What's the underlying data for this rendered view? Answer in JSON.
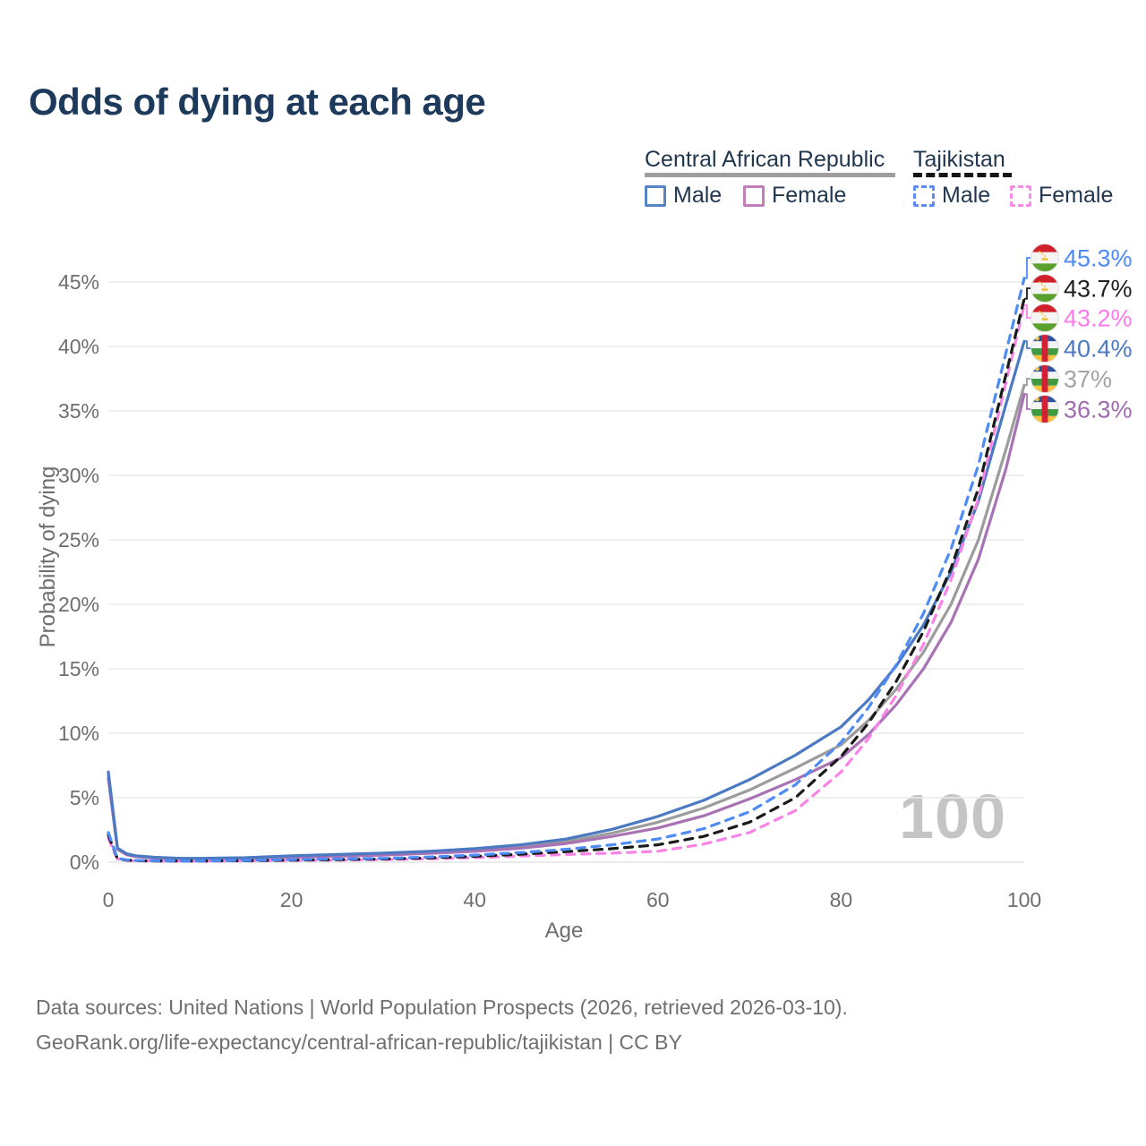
{
  "title": "Odds of dying at each age",
  "legend": {
    "groups": [
      {
        "id": "car",
        "label": "Central African Republic",
        "rule_style": "solid",
        "rule_color": "#9e9e9e",
        "items": [
          {
            "id": "car_male",
            "label": "Male"
          },
          {
            "id": "car_female",
            "label": "Female"
          }
        ]
      },
      {
        "id": "tjk",
        "label": "Tajikistan",
        "rule_style": "dashed",
        "rule_color": "#141414",
        "items": [
          {
            "id": "tjk_male",
            "label": "Male"
          },
          {
            "id": "tjk_female",
            "label": "Female"
          }
        ]
      }
    ]
  },
  "watermark": "100",
  "footer": {
    "line1": "Data sources: United Nations | World Population Prospects (2026, retrieved 2026-03-10).",
    "line2": "GeoRank.org/life-expectancy/central-african-republic/tajikistan | CC BY"
  },
  "chart_data": {
    "type": "line",
    "title": "Odds of dying at each age",
    "xlabel": "Age",
    "ylabel": "Probability of dying",
    "xlim": [
      0,
      100
    ],
    "ylim": [
      0,
      47
    ],
    "x_ticks": [
      0,
      20,
      40,
      60,
      80,
      100
    ],
    "y_ticks": [
      0,
      5,
      10,
      15,
      20,
      25,
      30,
      35,
      40,
      45
    ],
    "y_tick_suffix": "%",
    "grid": true,
    "legend_position": "top-right",
    "ages": [
      0,
      1,
      2,
      3,
      5,
      8,
      10,
      15,
      20,
      25,
      30,
      35,
      40,
      45,
      50,
      55,
      60,
      65,
      70,
      75,
      80,
      83,
      86,
      89,
      92,
      95,
      98,
      100
    ],
    "series": [
      {
        "id": "car_both",
        "name": "Central African Republic — Both sexes",
        "country": "Central African Republic",
        "sex": "both",
        "style": "solid",
        "color": "#9c9c9c",
        "flag": "caf",
        "end_value": 37,
        "end_label": "37%",
        "end_label_color": "#a3a3a3",
        "values": [
          6.8,
          1.05,
          0.6,
          0.46,
          0.35,
          0.28,
          0.28,
          0.32,
          0.44,
          0.52,
          0.62,
          0.76,
          0.94,
          1.2,
          1.6,
          2.25,
          3.1,
          4.2,
          5.6,
          7.3,
          9.1,
          11.0,
          13.4,
          16.3,
          20.0,
          25.0,
          32.0,
          37.0
        ]
      },
      {
        "id": "car_female",
        "name": "Central African Republic — Female",
        "country": "Central African Republic",
        "sex": "female",
        "style": "solid",
        "color": "#a872b4",
        "flag": "caf",
        "end_value": 36.3,
        "end_label": "36.3%",
        "end_label_color": "#a06cb0",
        "values": [
          6.5,
          1.0,
          0.57,
          0.43,
          0.32,
          0.26,
          0.26,
          0.3,
          0.38,
          0.46,
          0.55,
          0.68,
          0.84,
          1.08,
          1.45,
          2.0,
          2.65,
          3.6,
          4.9,
          6.4,
          8.1,
          9.9,
          12.2,
          15.0,
          18.6,
          23.5,
          30.5,
          36.3
        ]
      },
      {
        "id": "car_male",
        "name": "Central African Republic — Male",
        "country": "Central African Republic",
        "sex": "male",
        "style": "solid",
        "color": "#4b79c2",
        "flag": "caf",
        "end_value": 40.4,
        "end_label": "40.4%",
        "end_label_color": "#4b79c2",
        "values": [
          7.0,
          1.1,
          0.65,
          0.5,
          0.38,
          0.3,
          0.3,
          0.35,
          0.5,
          0.6,
          0.7,
          0.85,
          1.05,
          1.35,
          1.8,
          2.55,
          3.55,
          4.8,
          6.4,
          8.3,
          10.5,
          12.6,
          15.2,
          18.4,
          22.5,
          28.0,
          35.5,
          40.4
        ]
      },
      {
        "id": "tjk_female",
        "name": "Tajikistan — Female",
        "country": "Tajikistan",
        "sex": "female",
        "style": "dashed",
        "color": "#f983e6",
        "flag": "tjk",
        "end_value": 43.2,
        "end_label": "43.2%",
        "end_label_color": "#fb7be8",
        "values": [
          1.85,
          0.24,
          0.14,
          0.11,
          0.09,
          0.08,
          0.08,
          0.1,
          0.13,
          0.16,
          0.2,
          0.26,
          0.35,
          0.47,
          0.6,
          0.7,
          0.85,
          1.4,
          2.3,
          4.0,
          7.0,
          9.6,
          12.9,
          16.9,
          21.9,
          28.2,
          37.2,
          43.2
        ]
      },
      {
        "id": "tjk_both",
        "name": "Tajikistan — Both sexes",
        "country": "Tajikistan",
        "sex": "both",
        "style": "dashed",
        "color": "#1a1a1a",
        "flag": "tjk",
        "end_value": 43.7,
        "end_label": "43.7%",
        "end_label_color": "#1f1f1f",
        "values": [
          2.1,
          0.27,
          0.16,
          0.12,
          0.1,
          0.09,
          0.09,
          0.12,
          0.16,
          0.2,
          0.25,
          0.33,
          0.45,
          0.62,
          0.82,
          1.05,
          1.35,
          2.0,
          3.1,
          5.0,
          8.2,
          10.8,
          14.0,
          17.9,
          22.8,
          29.0,
          37.8,
          43.7
        ]
      },
      {
        "id": "tjk_male",
        "name": "Tajikistan — Male",
        "country": "Tajikistan",
        "sex": "male",
        "style": "dashed",
        "color": "#4e8bf5",
        "flag": "tjk",
        "end_value": 45.3,
        "end_label": "45.3%",
        "end_label_color": "#4d8af5",
        "values": [
          2.3,
          0.3,
          0.18,
          0.14,
          0.11,
          0.1,
          0.1,
          0.14,
          0.2,
          0.25,
          0.3,
          0.4,
          0.55,
          0.75,
          1.0,
          1.35,
          1.8,
          2.6,
          3.9,
          6.0,
          9.3,
          12.0,
          15.3,
          19.3,
          24.3,
          30.8,
          39.5,
          45.3
        ]
      }
    ]
  }
}
